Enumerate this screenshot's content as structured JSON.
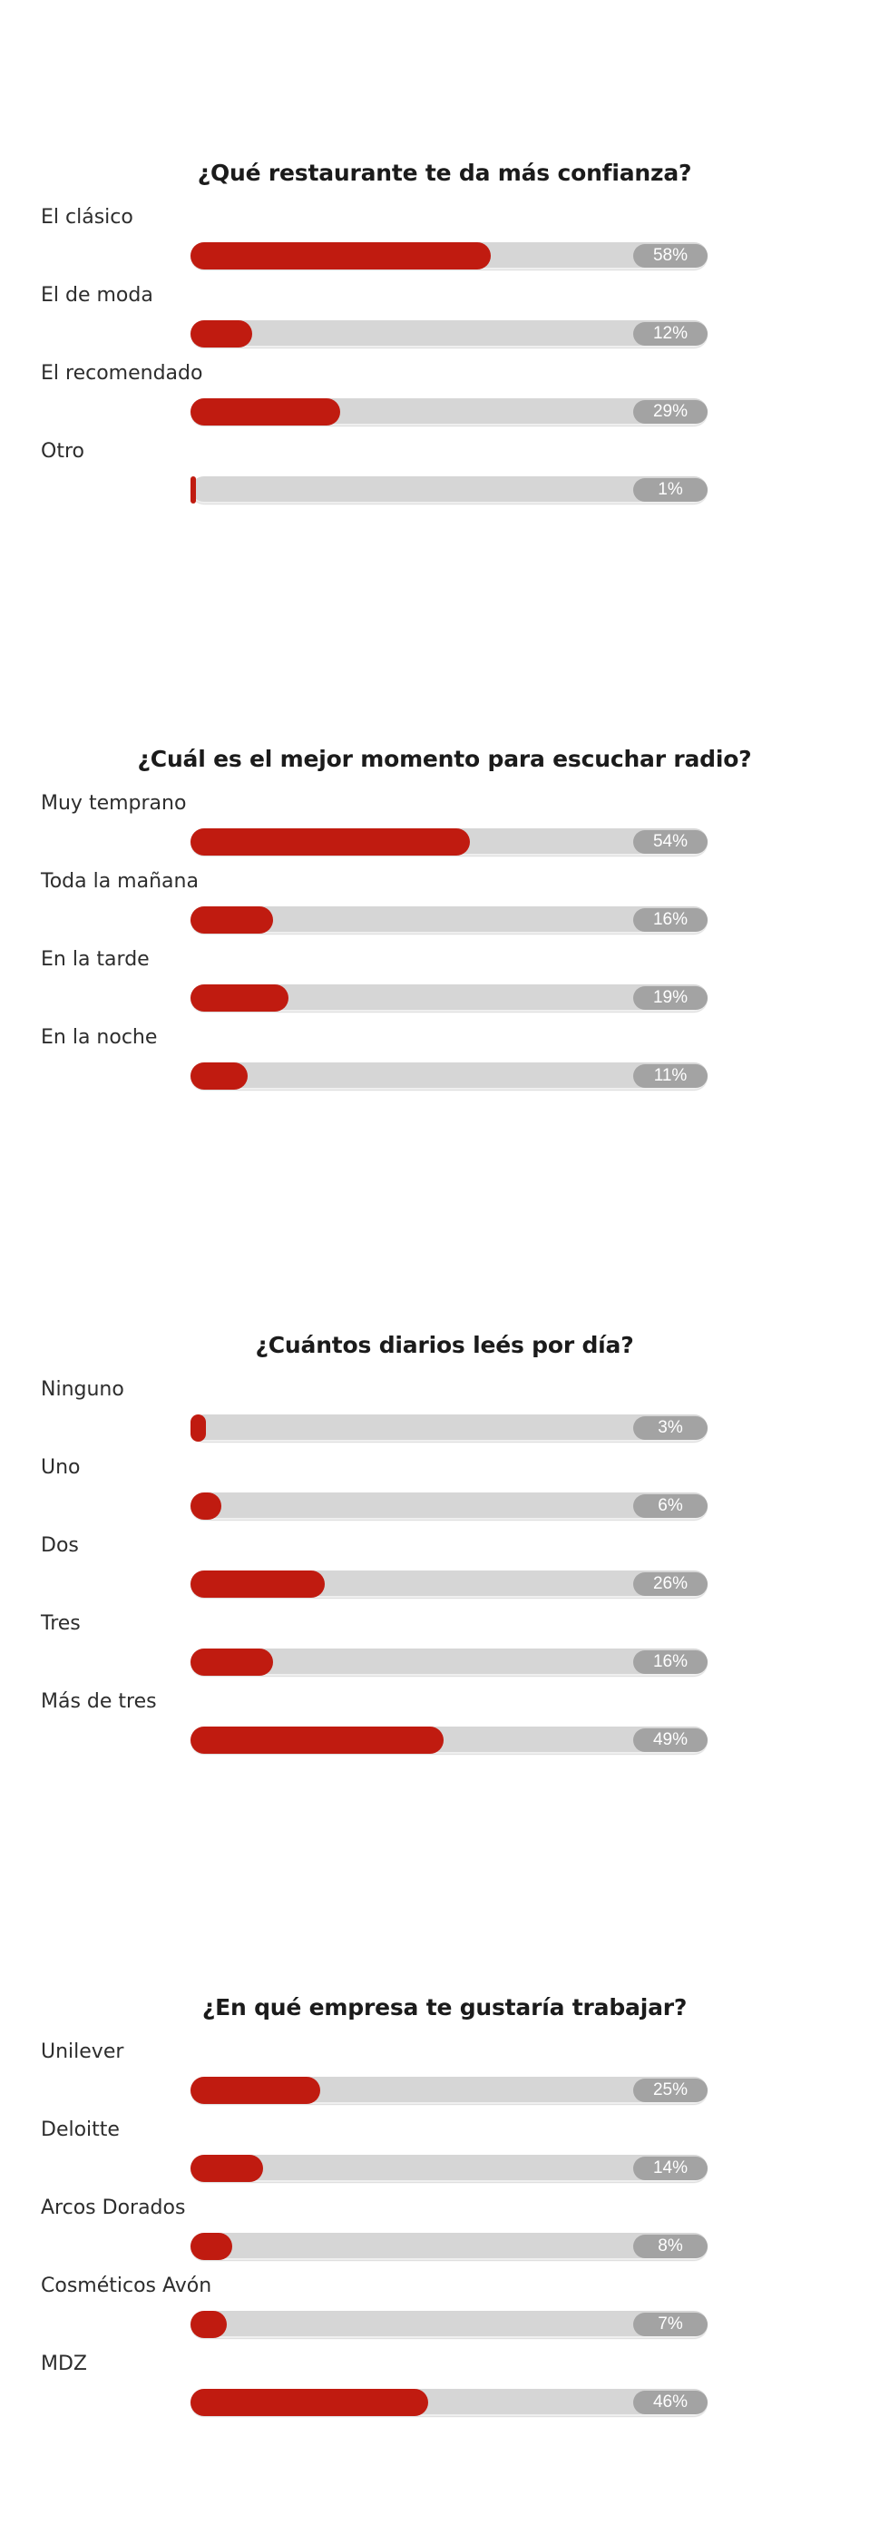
{
  "polls": [
    {
      "question": "¿Qué restaurante te da más confianza?",
      "options": [
        {
          "label": "El clásico",
          "value": 58,
          "value_label": "58%"
        },
        {
          "label": "El de moda",
          "value": 12,
          "value_label": "12%"
        },
        {
          "label": "El recomendado",
          "value": 29,
          "value_label": "29%"
        },
        {
          "label": "Otro",
          "value": 1,
          "value_label": "1%"
        }
      ]
    },
    {
      "question": "¿Cuál es el mejor momento para escuchar radio?",
      "options": [
        {
          "label": "Muy temprano",
          "value": 54,
          "value_label": "54%"
        },
        {
          "label": "Toda la mañana",
          "value": 16,
          "value_label": "16%"
        },
        {
          "label": "En la tarde",
          "value": 19,
          "value_label": "19%"
        },
        {
          "label": "En la noche",
          "value": 11,
          "value_label": "11%"
        }
      ]
    },
    {
      "question": "¿Cuántos diarios leés por día?",
      "options": [
        {
          "label": "Ninguno",
          "value": 3,
          "value_label": "3%"
        },
        {
          "label": "Uno",
          "value": 6,
          "value_label": "6%"
        },
        {
          "label": "Dos",
          "value": 26,
          "value_label": "26%"
        },
        {
          "label": "Tres",
          "value": 16,
          "value_label": "16%"
        },
        {
          "label": "Más de tres",
          "value": 49,
          "value_label": "49%"
        }
      ]
    },
    {
      "question": "¿En qué empresa te gustaría trabajar?",
      "options": [
        {
          "label": "Unilever",
          "value": 25,
          "value_label": "25%"
        },
        {
          "label": "Deloitte",
          "value": 14,
          "value_label": "14%"
        },
        {
          "label": "Arcos Dorados",
          "value": 8,
          "value_label": "8%"
        },
        {
          "label": "Cosméticos Avón",
          "value": 7,
          "value_label": "7%"
        },
        {
          "label": "MDZ",
          "value": 46,
          "value_label": "46%"
        }
      ]
    }
  ],
  "colors": {
    "bar_fill": "#c01b10",
    "bar_track": "#d6d6d6",
    "badge": "#a3a3a3"
  },
  "chart_data": [
    {
      "type": "bar",
      "orientation": "horizontal",
      "title": "¿Qué restaurante te da más confianza?",
      "categories": [
        "El clásico",
        "El de moda",
        "El recomendado",
        "Otro"
      ],
      "values": [
        58,
        12,
        29,
        1
      ],
      "unit": "%",
      "xlim": [
        0,
        100
      ]
    },
    {
      "type": "bar",
      "orientation": "horizontal",
      "title": "¿Cuál es el mejor momento para escuchar radio?",
      "categories": [
        "Muy temprano",
        "Toda la mañana",
        "En la tarde",
        "En la noche"
      ],
      "values": [
        54,
        16,
        19,
        11
      ],
      "unit": "%",
      "xlim": [
        0,
        100
      ]
    },
    {
      "type": "bar",
      "orientation": "horizontal",
      "title": "¿Cuántos diarios leés por día?",
      "categories": [
        "Ninguno",
        "Uno",
        "Dos",
        "Tres",
        "Más de tres"
      ],
      "values": [
        3,
        6,
        26,
        16,
        49
      ],
      "unit": "%",
      "xlim": [
        0,
        100
      ]
    },
    {
      "type": "bar",
      "orientation": "horizontal",
      "title": "¿En qué empresa te gustaría trabajar?",
      "categories": [
        "Unilever",
        "Deloitte",
        "Arcos Dorados",
        "Cosméticos Avón",
        "MDZ"
      ],
      "values": [
        25,
        14,
        8,
        7,
        46
      ],
      "unit": "%",
      "xlim": [
        0,
        100
      ]
    }
  ]
}
